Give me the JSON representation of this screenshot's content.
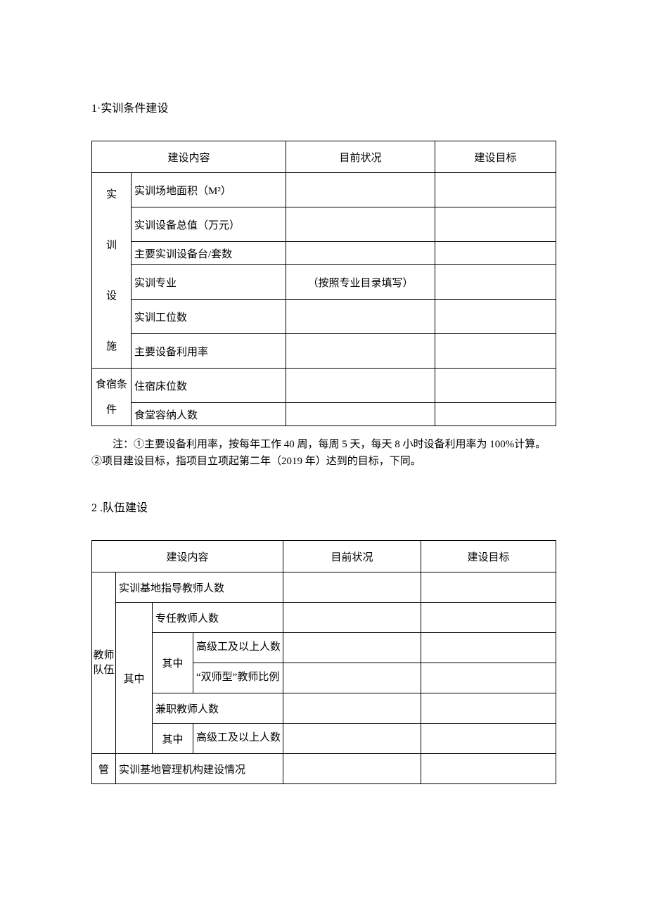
{
  "section1": {
    "heading": "1·实训条件建设",
    "headers": {
      "content": "建设内容",
      "status": "目前状况",
      "goal": "建设目标"
    },
    "facility_label": "实　训　设　施",
    "rows": {
      "area": "实训场地面积（M²）",
      "value": "实训设备总值（万元）",
      "sets": "主要实训设备台/套数",
      "major": "实训专业",
      "major_status": "（按照专业目录填写）",
      "stations": "实训工位数",
      "util": "主要设备利用率"
    },
    "lodging_label": "食宿条件",
    "lodging_rows": {
      "beds": "住宿床位数",
      "canteen": "食堂容纳人数"
    },
    "note": "注：①主要设备利用率，按每年工作 40 周，每周 5 天，每天 8 小时设备利用率为 100%计算。②项目建设目标，指项目立项起第二年（2019 年）达到的目标，下同。"
  },
  "section2": {
    "heading": "2  .队伍建设",
    "headers": {
      "content": "建设内容",
      "status": "目前状况",
      "goal": "建设目标"
    },
    "teacher_label": "教师队伍",
    "rows": {
      "total": "实训基地指导教师人数",
      "of_which": "其中",
      "full": "专任教师人数",
      "of_which2": "其中",
      "senior": "高级工及以上人数",
      "dual": "“双师型”教师比例",
      "part": "兼职教师人数",
      "of_which3": "其中",
      "senior2": "高级工及以上人数"
    },
    "mgmt_label": "管",
    "mgmt_row": "实训基地管理机构建设情况"
  }
}
